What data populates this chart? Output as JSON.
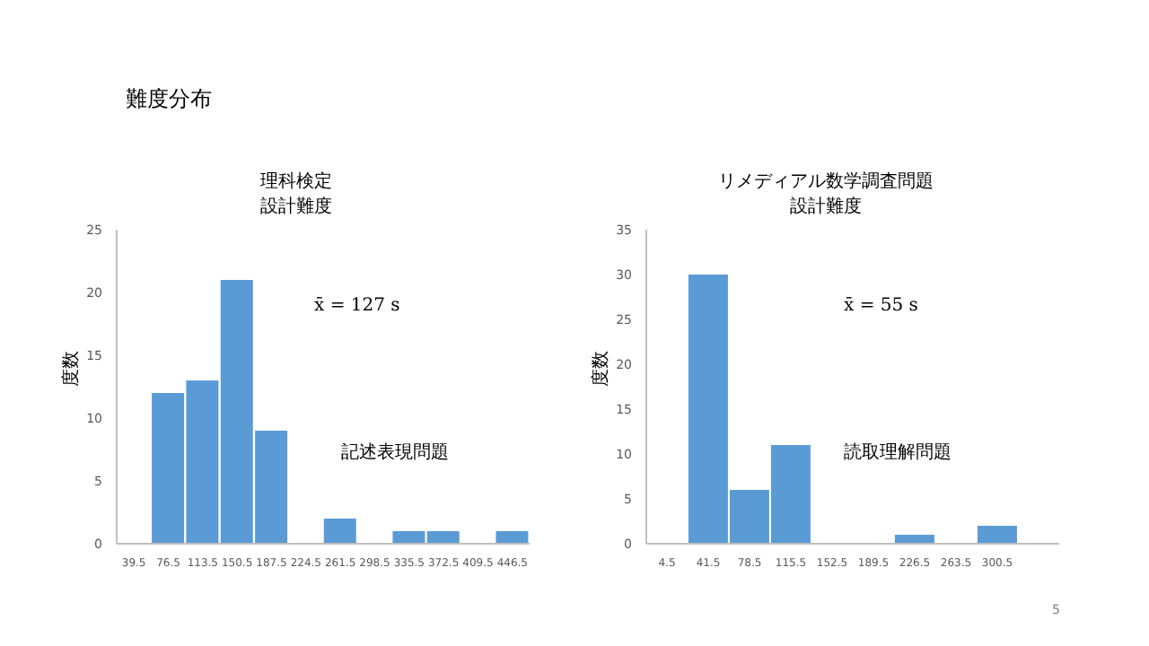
{
  "chart_data": [
    {
      "type": "bar",
      "title": "理科検定",
      "subtitle": "設計難度",
      "ylabel": "度数",
      "categories": [
        "39.5",
        "76.5",
        "113.5",
        "150.5",
        "187.5",
        "224.5",
        "261.5",
        "298.5",
        "335.5",
        "372.5",
        "409.5",
        "446.5"
      ],
      "values": [
        0,
        12,
        13,
        21,
        9,
        0,
        2,
        0,
        1,
        1,
        0,
        1
      ],
      "color": "#5b9bd5",
      "ylim": [
        0,
        25
      ],
      "yticks": [
        0,
        5,
        10,
        15,
        20,
        25
      ],
      "grid": false,
      "legend": false,
      "annotations": [
        "難度分布",
        "x̄ = 127 s",
        "記述表現問題",
        "5"
      ]
    },
    {
      "type": "bar",
      "title": "リメディアル数学調査問題",
      "subtitle": "設計難度",
      "ylabel": "度数",
      "categories": [
        "4.5",
        "41.5",
        "78.5",
        "115.5",
        "152.5",
        "189.5",
        "226.5",
        "263.5",
        "300.5",
        null
      ],
      "values": [
        0,
        30,
        6,
        11,
        0,
        0,
        1,
        0,
        2,
        0
      ],
      "color": "#5b9bd5",
      "ylim": [
        0,
        35
      ],
      "yticks": [
        0,
        5,
        10,
        15,
        20,
        25,
        30,
        35
      ],
      "grid": false,
      "legend": false,
      "annotations": [
        "x̄ = 55 s",
        "読取理解問題"
      ]
    }
  ]
}
